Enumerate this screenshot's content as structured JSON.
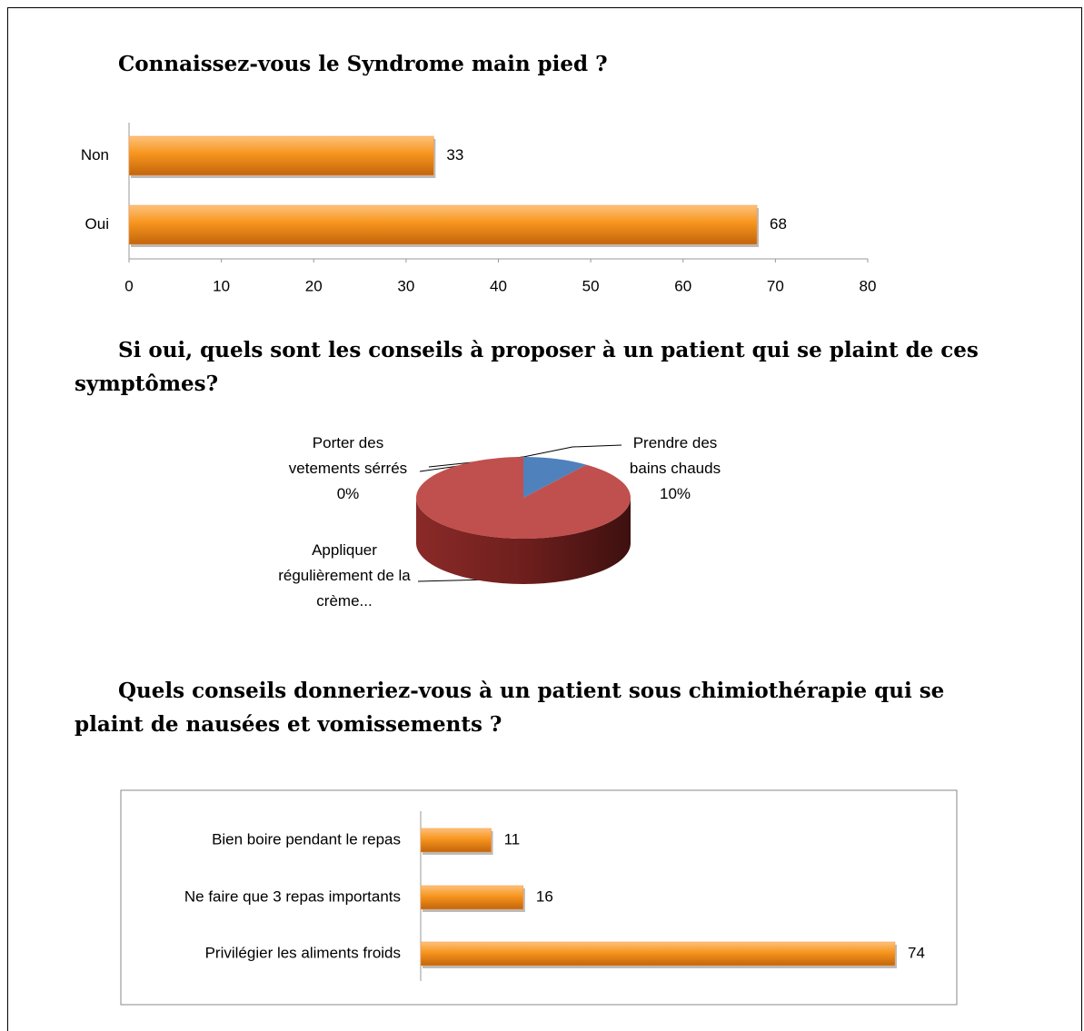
{
  "chart_data": [
    {
      "type": "hbar",
      "title": "Connaissez-vous le Syndrome main pied ?",
      "categories": [
        "Non",
        "Oui"
      ],
      "values": [
        33,
        68
      ],
      "color": "#f79646",
      "xlim": [
        0,
        80
      ],
      "xticks": [
        0,
        10,
        20,
        30,
        40,
        50,
        60,
        70,
        80
      ]
    },
    {
      "type": "pie3d",
      "title": "Si oui, quels sont les conseils à proposer à un patient qui se plaint de ces symptômes?",
      "categories": [
        "Prendre des bains chauds",
        "Porter des vetements sérrés",
        "Appliquer régulièrement de la crème..."
      ],
      "values": [
        10,
        0,
        90
      ],
      "value_labels": [
        "10%",
        "0%",
        null
      ],
      "colors": [
        "#4f81bd",
        "#8064a2",
        "#c0504d"
      ]
    },
    {
      "type": "hbar",
      "title": "Quels conseils donneriez-vous à un patient sous chimiothérapie qui se plaint de nausées et vomissements ?",
      "categories": [
        "Bien boire pendant le repas",
        "Ne faire que 3 repas importants",
        "Privilégier les aliments froids"
      ],
      "values": [
        11,
        16,
        74
      ],
      "color": "#f79646"
    }
  ]
}
